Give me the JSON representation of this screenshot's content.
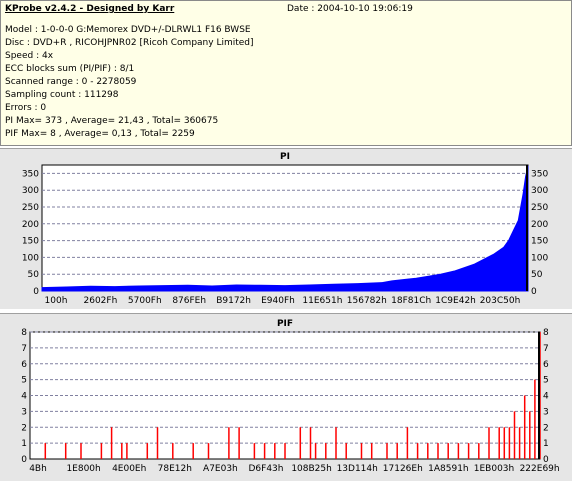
{
  "info": {
    "title": "KProbe v2.4.2 - Designed by Karr",
    "date": "Date : 2004-10-10 19:06:19",
    "lines": [
      "Model : 1-0-0-0 G:Memorex DVD+/-DLRWL1 F16 BWSE",
      "Disc : DVD+R , RICOHJPNR02 [Ricoh Company Limited]",
      "Speed : 4x",
      "ECC blocks sum (PI/PIF) : 8/1",
      "Scanned range : 0 - 2278059",
      "Sampling count : 111298",
      "Errors : 0",
      "PI Max= 373 , Average= 21,43 , Total= 360675",
      "PIF Max= 8 , Average= 0,13 , Total= 2259"
    ]
  },
  "chart_data": [
    {
      "type": "area",
      "title": "PI",
      "color": "#0000ff",
      "ylim": [
        0,
        375
      ],
      "yticks": [
        0,
        50,
        100,
        150,
        200,
        250,
        300,
        350
      ],
      "xtick_labels": [
        "100h",
        "2602Fh",
        "5700Fh",
        "876FEh",
        "B9172h",
        "E940Fh",
        "11E651h",
        "156782h",
        "18F81Ch",
        "1C9E42h",
        "203C50h"
      ],
      "grid": true,
      "series": [
        {
          "x": [
            0.0,
            0.05,
            0.1,
            0.15,
            0.2,
            0.25,
            0.3,
            0.35,
            0.4,
            0.45,
            0.5,
            0.55,
            0.6,
            0.65,
            0.7,
            0.72,
            0.75,
            0.77,
            0.8,
            0.82,
            0.85,
            0.87,
            0.89,
            0.91,
            0.93,
            0.95,
            0.96,
            0.97,
            0.98,
            0.985,
            0.99,
            0.995,
            1.0
          ],
          "values": [
            10,
            12,
            14,
            13,
            15,
            16,
            17,
            15,
            18,
            17,
            16,
            18,
            20,
            22,
            25,
            30,
            35,
            38,
            45,
            50,
            60,
            70,
            80,
            95,
            110,
            130,
            150,
            180,
            210,
            250,
            290,
            340,
            373
          ]
        }
      ]
    },
    {
      "type": "bar",
      "title": "PIF",
      "color": "#ff0000",
      "ylim": [
        0,
        8
      ],
      "yticks": [
        0,
        1,
        2,
        3,
        4,
        5,
        6,
        7,
        8
      ],
      "xtick_labels": [
        "4Bh",
        "1E800h",
        "4E00Eh",
        "78E12h",
        "A7E03h",
        "D6F43h",
        "108B25h",
        "13D114h",
        "17126Eh",
        "1A8591h",
        "1EB003h",
        "222E69h"
      ],
      "grid": true,
      "series": [
        {
          "x": [
            0.03,
            0.07,
            0.1,
            0.14,
            0.16,
            0.18,
            0.19,
            0.23,
            0.25,
            0.28,
            0.32,
            0.35,
            0.39,
            0.41,
            0.44,
            0.46,
            0.48,
            0.5,
            0.53,
            0.55,
            0.56,
            0.58,
            0.6,
            0.62,
            0.65,
            0.67,
            0.7,
            0.72,
            0.74,
            0.76,
            0.78,
            0.8,
            0.82,
            0.84,
            0.86,
            0.88,
            0.9,
            0.92,
            0.93,
            0.94,
            0.95,
            0.96,
            0.97,
            0.98,
            0.99,
            1.0
          ],
          "values": [
            1,
            1,
            1,
            1,
            2,
            1,
            1,
            1,
            2,
            1,
            1,
            1,
            2,
            2,
            1,
            1,
            1,
            1,
            2,
            2,
            1,
            1,
            2,
            1,
            1,
            1,
            1,
            1,
            2,
            1,
            1,
            1,
            1,
            1,
            1,
            1,
            2,
            2,
            2,
            2,
            3,
            2,
            4,
            3,
            5,
            8
          ]
        }
      ]
    }
  ]
}
